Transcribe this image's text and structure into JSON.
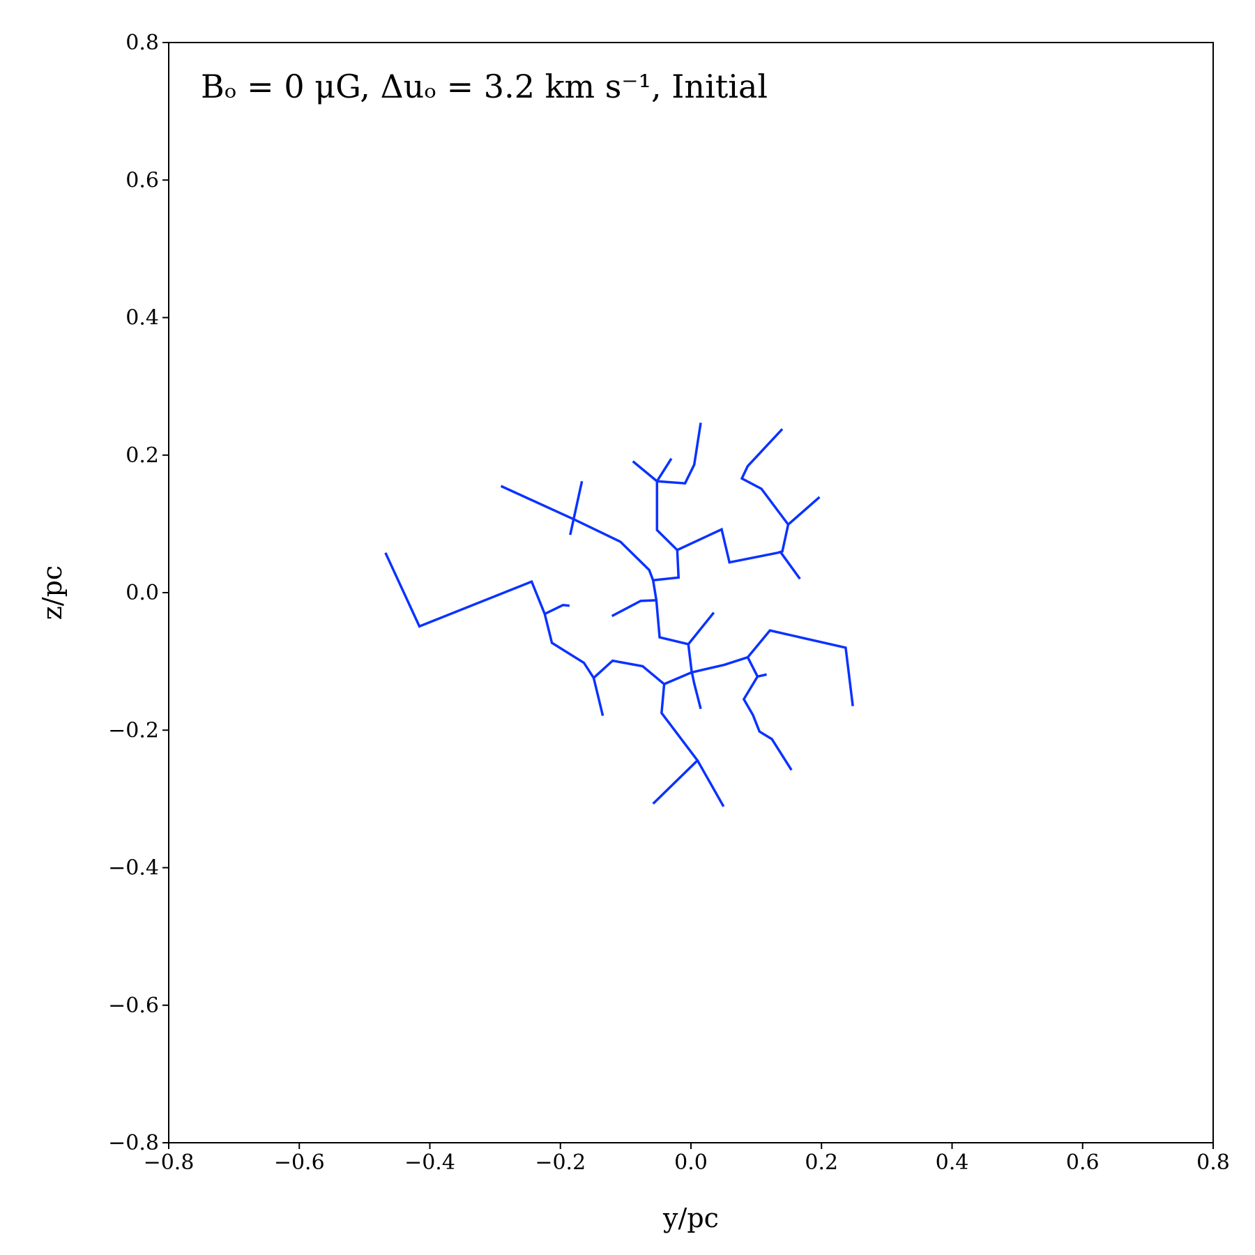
{
  "chart_data": {
    "type": "line",
    "title": "Bₒ = 0 μG, Δuₒ = 3.2 km s⁻¹, Initial",
    "x_label": "y/pc",
    "y_label": "z/pc",
    "color": "#0a32ff",
    "xlim": [
      -0.8,
      0.8
    ],
    "ylim": [
      -0.8,
      0.8
    ],
    "xticks": [
      {
        "value": -0.8,
        "label": "−0.8"
      },
      {
        "value": -0.6,
        "label": "−0.6"
      },
      {
        "value": -0.4,
        "label": "−0.4"
      },
      {
        "value": -0.2,
        "label": "−0.2"
      },
      {
        "value": 0,
        "label": "0.0"
      },
      0.2,
      0.4,
      0.6,
      0.8
    ],
    "yticks": [
      {
        "value": -0.8,
        "label": "−0.8"
      },
      {
        "value": -0.6,
        "label": "−0.6"
      },
      {
        "value": -0.4,
        "label": "−0.4"
      },
      {
        "value": -0.2,
        "label": "−0.2"
      },
      {
        "value": 0,
        "label": "0.0"
      },
      0.2,
      0.4,
      0.6,
      0.8
    ],
    "lines": [
      {
        "x": [
          -0.291,
          -0.178,
          -0.108,
          -0.064,
          -0.058,
          -0.053,
          -0.048,
          -0.004,
          0.001,
          0.005,
          0.015
        ],
        "values": [
          0.155,
          0.106,
          0.074,
          0.033,
          0.018,
          -0.011,
          -0.065,
          -0.075,
          -0.114,
          -0.132,
          -0.169
        ]
      },
      {
        "x": [
          -0.167,
          -0.185
        ],
        "values": [
          0.162,
          0.084
        ]
      },
      {
        "x": [
          -0.058,
          -0.019,
          -0.021,
          -0.052,
          -0.052,
          -0.089
        ],
        "values": [
          0.018,
          0.022,
          0.062,
          0.091,
          0.162,
          0.191
        ]
      },
      {
        "x": [
          -0.052,
          -0.03
        ],
        "values": [
          0.162,
          0.195
        ]
      },
      {
        "x": [
          -0.052,
          -0.009,
          0.005,
          0.015
        ],
        "values": [
          0.162,
          0.159,
          0.186,
          0.247
        ]
      },
      {
        "x": [
          -0.021,
          0.047,
          0.059,
          0.133,
          0.14,
          0.149,
          0.197
        ],
        "values": [
          0.062,
          0.092,
          0.044,
          0.058,
          0.06,
          0.099,
          0.139
        ]
      },
      {
        "x": [
          0.149,
          0.108,
          0.078,
          0.087,
          0.14
        ],
        "values": [
          0.099,
          0.151,
          0.166,
          0.184,
          0.238
        ]
      },
      {
        "x": [
          0.138,
          0.167
        ],
        "values": [
          0.058,
          0.02
        ]
      },
      {
        "x": [
          -0.468,
          -0.416,
          -0.244,
          -0.224,
          -0.213,
          -0.164,
          -0.149,
          -0.135
        ],
        "values": [
          0.058,
          -0.049,
          0.016,
          -0.031,
          -0.073,
          -0.102,
          -0.124,
          -0.179
        ]
      },
      {
        "x": [
          -0.224,
          -0.196,
          -0.186
        ],
        "values": [
          -0.031,
          -0.018,
          -0.019
        ]
      },
      {
        "x": [
          -0.121,
          -0.077,
          -0.053
        ],
        "values": [
          -0.034,
          -0.012,
          -0.011
        ]
      },
      {
        "x": [
          -0.149,
          -0.12,
          -0.074,
          -0.041,
          0.001,
          0.051,
          0.087,
          0.121,
          0.237,
          0.248
        ],
        "values": [
          -0.124,
          -0.099,
          -0.107,
          -0.133,
          -0.116,
          -0.105,
          -0.094,
          -0.055,
          -0.08,
          -0.165
        ]
      },
      {
        "x": [
          -0.041,
          -0.045,
          0.01,
          -0.058
        ],
        "values": [
          -0.133,
          -0.175,
          -0.244,
          -0.307
        ]
      },
      {
        "x": [
          0.01,
          0.05
        ],
        "values": [
          -0.244,
          -0.311
        ]
      },
      {
        "x": [
          -0.004,
          0.035
        ],
        "values": [
          -0.075,
          -0.029
        ]
      },
      {
        "x": [
          0.087,
          0.102,
          0.081,
          0.095,
          0.105,
          0.124,
          0.154
        ],
        "values": [
          -0.094,
          -0.122,
          -0.155,
          -0.178,
          -0.202,
          -0.213,
          -0.258
        ]
      },
      {
        "x": [
          0.102,
          0.116
        ],
        "values": [
          -0.122,
          -0.119
        ]
      }
    ]
  }
}
